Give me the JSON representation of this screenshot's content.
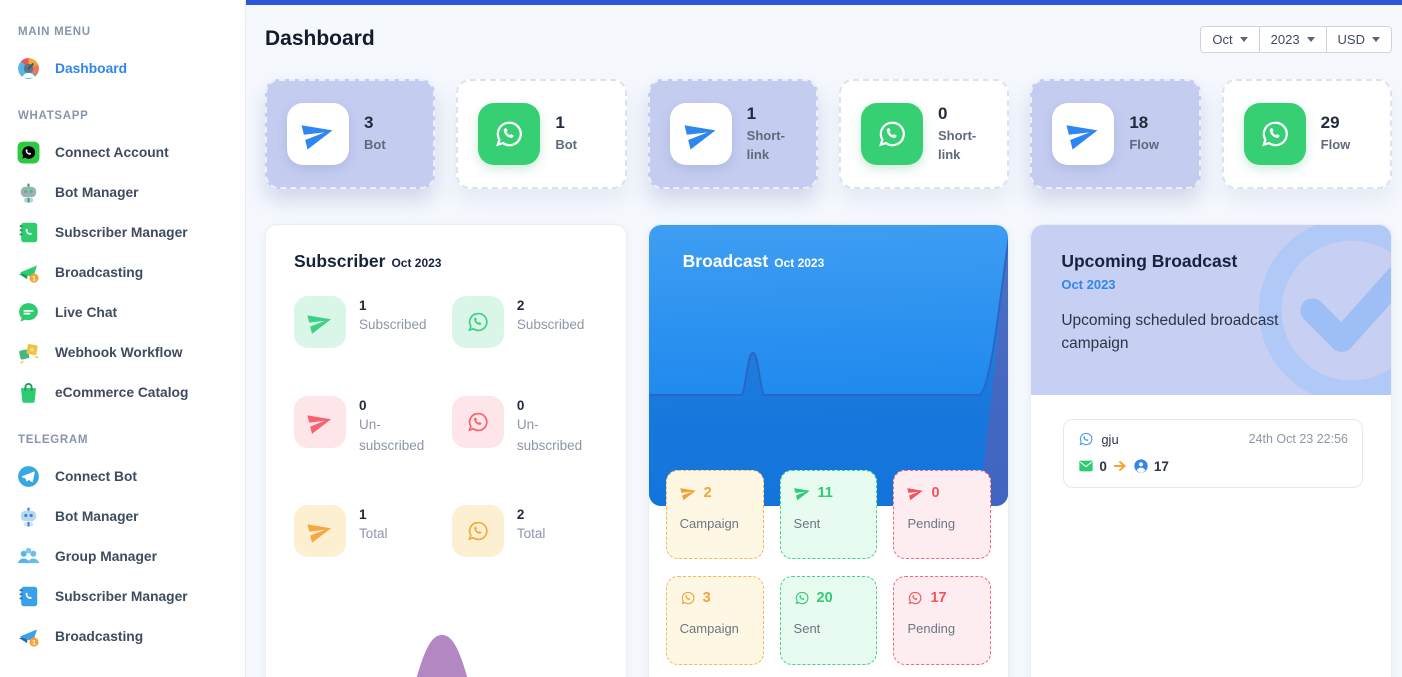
{
  "colors": {
    "accent_blue": "#2f86eb",
    "topbar_blue": "#2e56d9",
    "broadcast_blue": "#1f8ceb",
    "lavender": "#c4ccf0",
    "whatsapp_green": "#36cf74",
    "success_green": "#2fcb74",
    "warning_orange": "#f2a23b",
    "danger_red": "#f4525c",
    "muted_text": "#8d97a8"
  },
  "sidebar": {
    "sections": [
      {
        "label": "MAIN MENU",
        "items": [
          {
            "label": "Dashboard",
            "icon": "gauge-icon",
            "active": true
          }
        ]
      },
      {
        "label": "WHATSAPP",
        "items": [
          {
            "label": "Connect Account",
            "icon": "whatsapp-square-icon"
          },
          {
            "label": "Bot Manager",
            "icon": "robot-gray-icon"
          },
          {
            "label": "Subscriber Manager",
            "icon": "contacts-green-icon"
          },
          {
            "label": "Broadcasting",
            "icon": "broadcast-green-icon"
          },
          {
            "label": "Live Chat",
            "icon": "chat-bubble-icon"
          },
          {
            "label": "Webhook Workflow",
            "icon": "puzzle-icon"
          },
          {
            "label": "eCommerce Catalog",
            "icon": "shopping-bag-icon"
          }
        ]
      },
      {
        "label": "TELEGRAM",
        "items": [
          {
            "label": "Connect Bot",
            "icon": "telegram-circle-icon"
          },
          {
            "label": "Bot Manager",
            "icon": "robot-blue-icon"
          },
          {
            "label": "Group Manager",
            "icon": "group-icon"
          },
          {
            "label": "Subscriber Manager",
            "icon": "contacts-blue-icon"
          },
          {
            "label": "Broadcasting",
            "icon": "broadcast-blue-icon"
          }
        ]
      }
    ]
  },
  "header": {
    "title": "Dashboard",
    "filters": [
      {
        "label": "Oct"
      },
      {
        "label": "2023"
      },
      {
        "label": "USD"
      }
    ]
  },
  "stat_cards": [
    {
      "value": "3",
      "label": "Bot",
      "platform": "telegram",
      "style": "lavender"
    },
    {
      "value": "1",
      "label": "Bot",
      "platform": "whatsapp",
      "style": "white"
    },
    {
      "value": "1",
      "label": "Short-link",
      "platform": "telegram",
      "style": "lavender"
    },
    {
      "value": "0",
      "label": "Short-link",
      "platform": "whatsapp",
      "style": "white"
    },
    {
      "value": "18",
      "label": "Flow",
      "platform": "telegram",
      "style": "lavender"
    },
    {
      "value": "29",
      "label": "Flow",
      "platform": "whatsapp",
      "style": "white"
    }
  ],
  "subscriber_panel": {
    "title": "Subscriber",
    "period": "Oct 2023",
    "stats": [
      {
        "value": "1",
        "label": "Subscribed",
        "platform": "telegram",
        "color": "green"
      },
      {
        "value": "2",
        "label": "Subscribed",
        "platform": "whatsapp",
        "color": "green"
      },
      {
        "value": "0",
        "label": "Un-subscribed",
        "platform": "telegram",
        "color": "red"
      },
      {
        "value": "0",
        "label": "Un-subscribed",
        "platform": "whatsapp",
        "color": "red"
      },
      {
        "value": "1",
        "label": "Total",
        "platform": "telegram",
        "color": "yellow"
      },
      {
        "value": "2",
        "label": "Total",
        "platform": "whatsapp",
        "color": "yellow"
      }
    ]
  },
  "broadcast_panel": {
    "title": "Broadcast",
    "period": "Oct 2023",
    "chips": [
      {
        "value": "2",
        "label": "Campaign",
        "platform": "telegram",
        "color": "yellow"
      },
      {
        "value": "11",
        "label": "Sent",
        "platform": "telegram",
        "color": "green"
      },
      {
        "value": "0",
        "label": "Pending",
        "platform": "telegram",
        "color": "red"
      },
      {
        "value": "3",
        "label": "Campaign",
        "platform": "whatsapp",
        "color": "yellow"
      },
      {
        "value": "20",
        "label": "Sent",
        "platform": "whatsapp",
        "color": "green"
      },
      {
        "value": "17",
        "label": "Pending",
        "platform": "whatsapp",
        "color": "red"
      }
    ]
  },
  "upcoming_panel": {
    "title": "Upcoming Broadcast",
    "period": "Oct 2023",
    "description": "Upcoming scheduled broadcast campaign",
    "items": [
      {
        "name": "gju",
        "platform": "whatsapp",
        "datetime": "24th Oct 23 22:56",
        "sent": "0",
        "audience": "17"
      }
    ]
  }
}
